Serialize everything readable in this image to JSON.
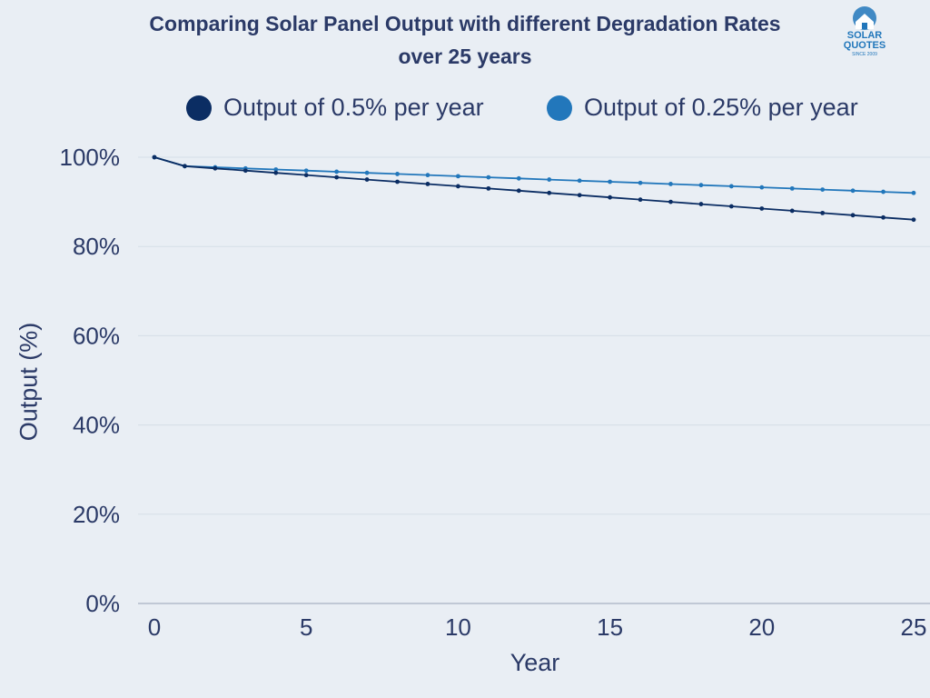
{
  "chart_data": {
    "type": "line",
    "title_line1": "Comparing Solar Panel Output with different Degradation Rates",
    "title_line2": "over 25 years",
    "xlabel": "Year",
    "ylabel": "Output (%)",
    "x": [
      0,
      1,
      2,
      3,
      4,
      5,
      6,
      7,
      8,
      9,
      10,
      11,
      12,
      13,
      14,
      15,
      16,
      17,
      18,
      19,
      20,
      21,
      22,
      23,
      24,
      25
    ],
    "xticks": [
      0,
      5,
      10,
      15,
      20,
      25
    ],
    "yticks": [
      0,
      20,
      40,
      60,
      80,
      100
    ],
    "ytick_labels": [
      "0%",
      "20%",
      "40%",
      "60%",
      "80%",
      "100%"
    ],
    "xlim": [
      0,
      25
    ],
    "ylim": [
      0,
      100
    ],
    "grid": true,
    "legend_position": "top",
    "series": [
      {
        "name": "Output of 0.5% per year",
        "color": "#0b2d63",
        "values": [
          100,
          98,
          97.5,
          97,
          96.5,
          96,
          95.5,
          95,
          94.5,
          94,
          93.5,
          93,
          92.5,
          92,
          91.5,
          91,
          90.5,
          90,
          89.5,
          89,
          88.5,
          88,
          87.5,
          87,
          86.5,
          86
        ]
      },
      {
        "name": "Output of 0.25% per year",
        "color": "#2277bb",
        "values": [
          100,
          98,
          97.75,
          97.5,
          97.25,
          97,
          96.75,
          96.5,
          96.25,
          96,
          95.75,
          95.5,
          95.25,
          95,
          94.75,
          94.5,
          94.25,
          94,
          93.75,
          93.5,
          93.25,
          93,
          92.75,
          92.5,
          92.25,
          92
        ]
      }
    ]
  },
  "logo": {
    "line1": "SOLAR",
    "line2": "QUOTES",
    "line3": "SINCE 2009"
  }
}
